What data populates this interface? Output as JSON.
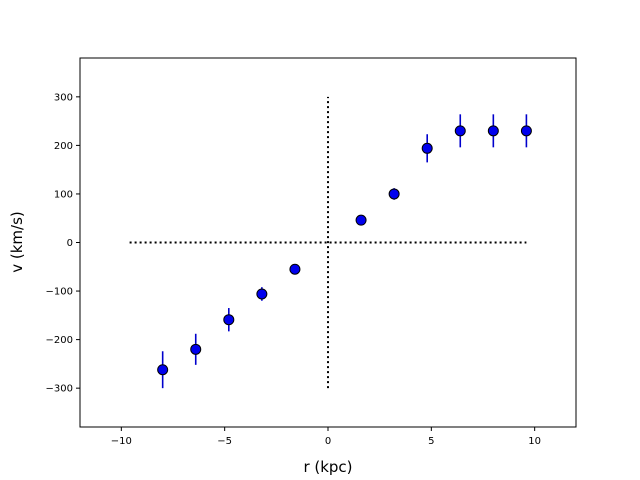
{
  "chart_data": {
    "type": "scatter",
    "title": "",
    "xlabel": "r (kpc)",
    "ylabel": "v (km/s)",
    "xlim": [
      -12,
      12
    ],
    "ylim": [
      -380,
      380
    ],
    "xticks": [
      -10,
      -5,
      0,
      5,
      10
    ],
    "xtick_labels": [
      "−10",
      "−5",
      "0",
      "5",
      "10"
    ],
    "yticks": [
      -300,
      -200,
      -100,
      0,
      100,
      200,
      300
    ],
    "ytick_labels": [
      "−300",
      "−200",
      "−100",
      "0",
      "100",
      "200",
      "300"
    ],
    "grid": false,
    "series": [
      {
        "marker_color": "#0000ee",
        "marker_edge_color": "#000000",
        "errorbar_color": "#0000cc",
        "points": [
          {
            "x": -8.0,
            "y": -262,
            "yerr": 38
          },
          {
            "x": -6.4,
            "y": -220,
            "yerr": 32
          },
          {
            "x": -4.8,
            "y": -159,
            "yerr": 24
          },
          {
            "x": -3.2,
            "y": -106,
            "yerr": 14
          },
          {
            "x": -1.6,
            "y": -55,
            "yerr": 5
          },
          {
            "x": 1.6,
            "y": 46,
            "yerr": 5
          },
          {
            "x": 3.2,
            "y": 100,
            "yerr": 12
          },
          {
            "x": 4.8,
            "y": 194,
            "yerr": 29
          },
          {
            "x": 6.4,
            "y": 230,
            "yerr": 34
          },
          {
            "x": 8.0,
            "y": 230,
            "yerr": 34
          },
          {
            "x": 9.6,
            "y": 230,
            "yerr": 34
          }
        ]
      }
    ],
    "reference_lines": [
      {
        "orientation": "horizontal",
        "at": 0,
        "from": -9.6,
        "to": 9.6,
        "style": "dotted",
        "color": "#000000"
      },
      {
        "orientation": "vertical",
        "at": 0,
        "from": -300,
        "to": 300,
        "style": "dotted",
        "color": "#000000"
      }
    ]
  }
}
